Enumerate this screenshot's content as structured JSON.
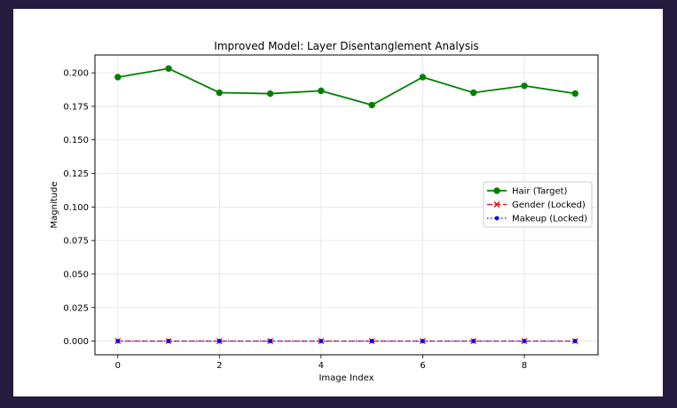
{
  "chart_data": {
    "type": "line",
    "title": "Improved Model: Layer Disentanglement Analysis",
    "xlabel": "Image Index",
    "ylabel": "Magnitude",
    "x": [
      0,
      1,
      2,
      3,
      4,
      5,
      6,
      7,
      8,
      9
    ],
    "xlim": [
      -0.45,
      9.45
    ],
    "ylim": [
      -0.0102,
      0.2133
    ],
    "xticks": [
      "0",
      "2",
      "4",
      "6",
      "8"
    ],
    "xtick_values": [
      0,
      2,
      4,
      6,
      8
    ],
    "yticks": [
      "0.000",
      "0.025",
      "0.050",
      "0.075",
      "0.100",
      "0.125",
      "0.150",
      "0.175",
      "0.200"
    ],
    "ytick_values": [
      0,
      0.025,
      0.05,
      0.075,
      0.1,
      0.125,
      0.15,
      0.175,
      0.2
    ],
    "grid": true,
    "legend_position": "center-right",
    "series": [
      {
        "name": "Hair (Target)",
        "values": [
          0.1968,
          0.2032,
          0.1852,
          0.1845,
          0.1866,
          0.176,
          0.1968,
          0.1852,
          0.1903,
          0.1846
        ],
        "color": "#008000",
        "linestyle": "solid",
        "marker": "circle"
      },
      {
        "name": "Gender (Locked)",
        "values": [
          0,
          0,
          0,
          0,
          0,
          0,
          0,
          0,
          0,
          0
        ],
        "color": "#ff0000",
        "linestyle": "dashed",
        "marker": "x"
      },
      {
        "name": "Makeup (Locked)",
        "values": [
          0,
          0,
          0,
          0,
          0,
          0,
          0,
          0,
          0,
          0
        ],
        "color": "#0000ff",
        "linestyle": "dotted",
        "marker": "dot"
      }
    ]
  }
}
